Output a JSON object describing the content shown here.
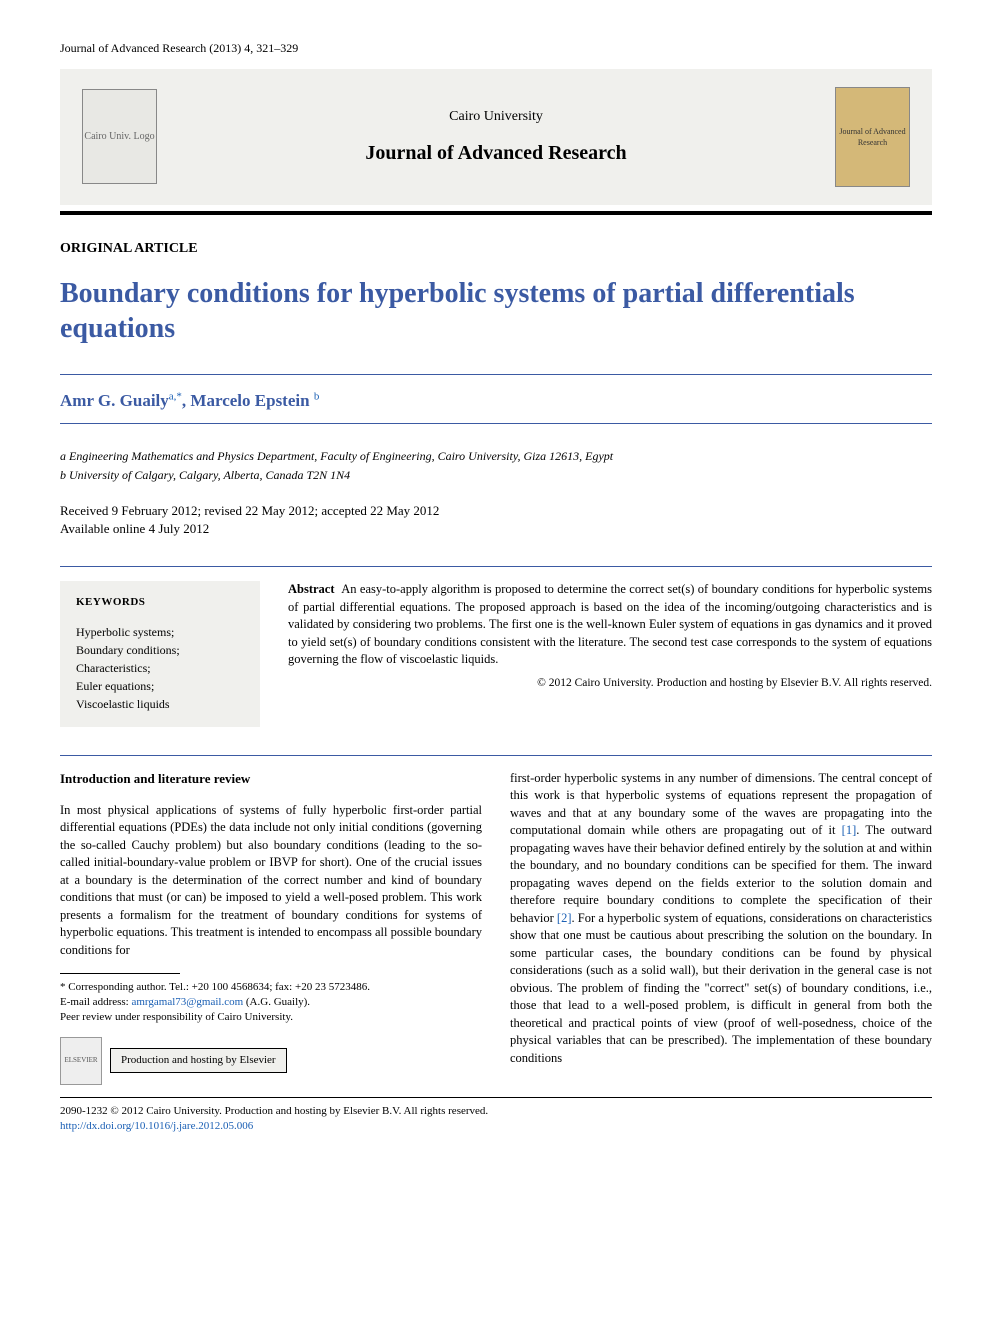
{
  "header": {
    "citation": "Journal of Advanced Research (2013) 4, 321–329",
    "university": "Cairo University",
    "journal": "Journal of Advanced Research",
    "logo_placeholder": "Cairo Univ. Logo",
    "cover_placeholder": "Journal of Advanced Research"
  },
  "article": {
    "type": "ORIGINAL ARTICLE",
    "title": "Boundary conditions for hyperbolic systems of partial differentials equations",
    "authors_html": "Amr G. Guaily",
    "author1_sup": "a,*",
    "author2": ", Marcelo Epstein",
    "author2_sup": "b",
    "affiliations": {
      "a": "a Engineering Mathematics and Physics Department, Faculty of Engineering, Cairo University, Giza 12613, Egypt",
      "b": "b University of Calgary, Calgary, Alberta, Canada T2N 1N4"
    },
    "dates_line1": "Received 9 February 2012; revised 22 May 2012; accepted 22 May 2012",
    "dates_line2": "Available online 4 July 2012"
  },
  "keywords": {
    "heading": "KEYWORDS",
    "items": "Hyperbolic systems;\nBoundary conditions;\nCharacteristics;\nEuler equations;\nViscoelastic liquids"
  },
  "abstract": {
    "label": "Abstract",
    "text": "An easy-to-apply algorithm is proposed to determine the correct set(s) of boundary conditions for hyperbolic systems of partial differential equations. The proposed approach is based on the idea of the incoming/outgoing characteristics and is validated by considering two problems. The first one is the well-known Euler system of equations in gas dynamics and it proved to yield set(s) of boundary conditions consistent with the literature. The second test case corresponds to the system of equations governing the flow of viscoelastic liquids.",
    "copyright": "© 2012 Cairo University. Production and hosting by Elsevier B.V. All rights reserved."
  },
  "body": {
    "intro_heading": "Introduction and literature review",
    "col1_p1": "In most physical applications of systems of fully hyperbolic first-order partial differential equations (PDEs) the data include not only initial conditions (governing the so-called Cauchy problem) but also boundary conditions (leading to the so-called initial-boundary-value problem or IBVP for short). One of the crucial issues at a boundary is the determination of the correct number and kind of boundary conditions that must (or can) be imposed to yield a well-posed problem. This work presents a formalism for the treatment of boundary conditions for systems of hyperbolic equations. This treatment is intended to encompass all possible boundary conditions for",
    "col2_p1a": "first-order hyperbolic systems in any number of dimensions. The central concept of this work is that hyperbolic systems of equations represent the propagation of waves and that at any boundary some of the waves are propagating into the computational domain while others are propagating out of it ",
    "ref1": "[1]",
    "col2_p1b": ". The outward propagating waves have their behavior defined entirely by the solution at and within the boundary, and no boundary conditions can be specified for them. The inward propagating waves depend on the fields exterior to the solution domain and therefore require boundary conditions to complete the specification of their behavior ",
    "ref2": "[2]",
    "col2_p1c": ". For a hyperbolic system of equations, considerations on characteristics show that one must be cautious about prescribing the solution on the boundary. In some particular cases, the boundary conditions can be found by physical considerations (such as a solid wall), but their derivation in the general case is not obvious. The problem of finding the \"correct\" set(s) of boundary conditions, i.e., those that lead to a well-posed problem, is difficult in general from both the theoretical and practical points of view (proof of well-posedness, choice of the physical variables that can be prescribed). The implementation of these boundary conditions"
  },
  "footnote": {
    "corresponding": "* Corresponding author. Tel.: +20 100 4568634; fax: +20 23 5723486.",
    "email_label": "E-mail address: ",
    "email": "amrgamal73@gmail.com",
    "email_paren": " (A.G. Guaily).",
    "peer": "Peer review under responsibility of Cairo University.",
    "elsevier_logo": "ELSEVIER",
    "hosting": "Production and hosting by Elsevier"
  },
  "footer": {
    "line1": "2090-1232 © 2012 Cairo University. Production and hosting by Elsevier B.V. All rights reserved.",
    "doi": "http://dx.doi.org/10.1016/j.jare.2012.05.006"
  },
  "colors": {
    "title_blue": "#3b5aa3",
    "link_blue": "#1a5fb4",
    "box_bg": "#f0f0ed",
    "cover_bg": "#d4b878"
  }
}
